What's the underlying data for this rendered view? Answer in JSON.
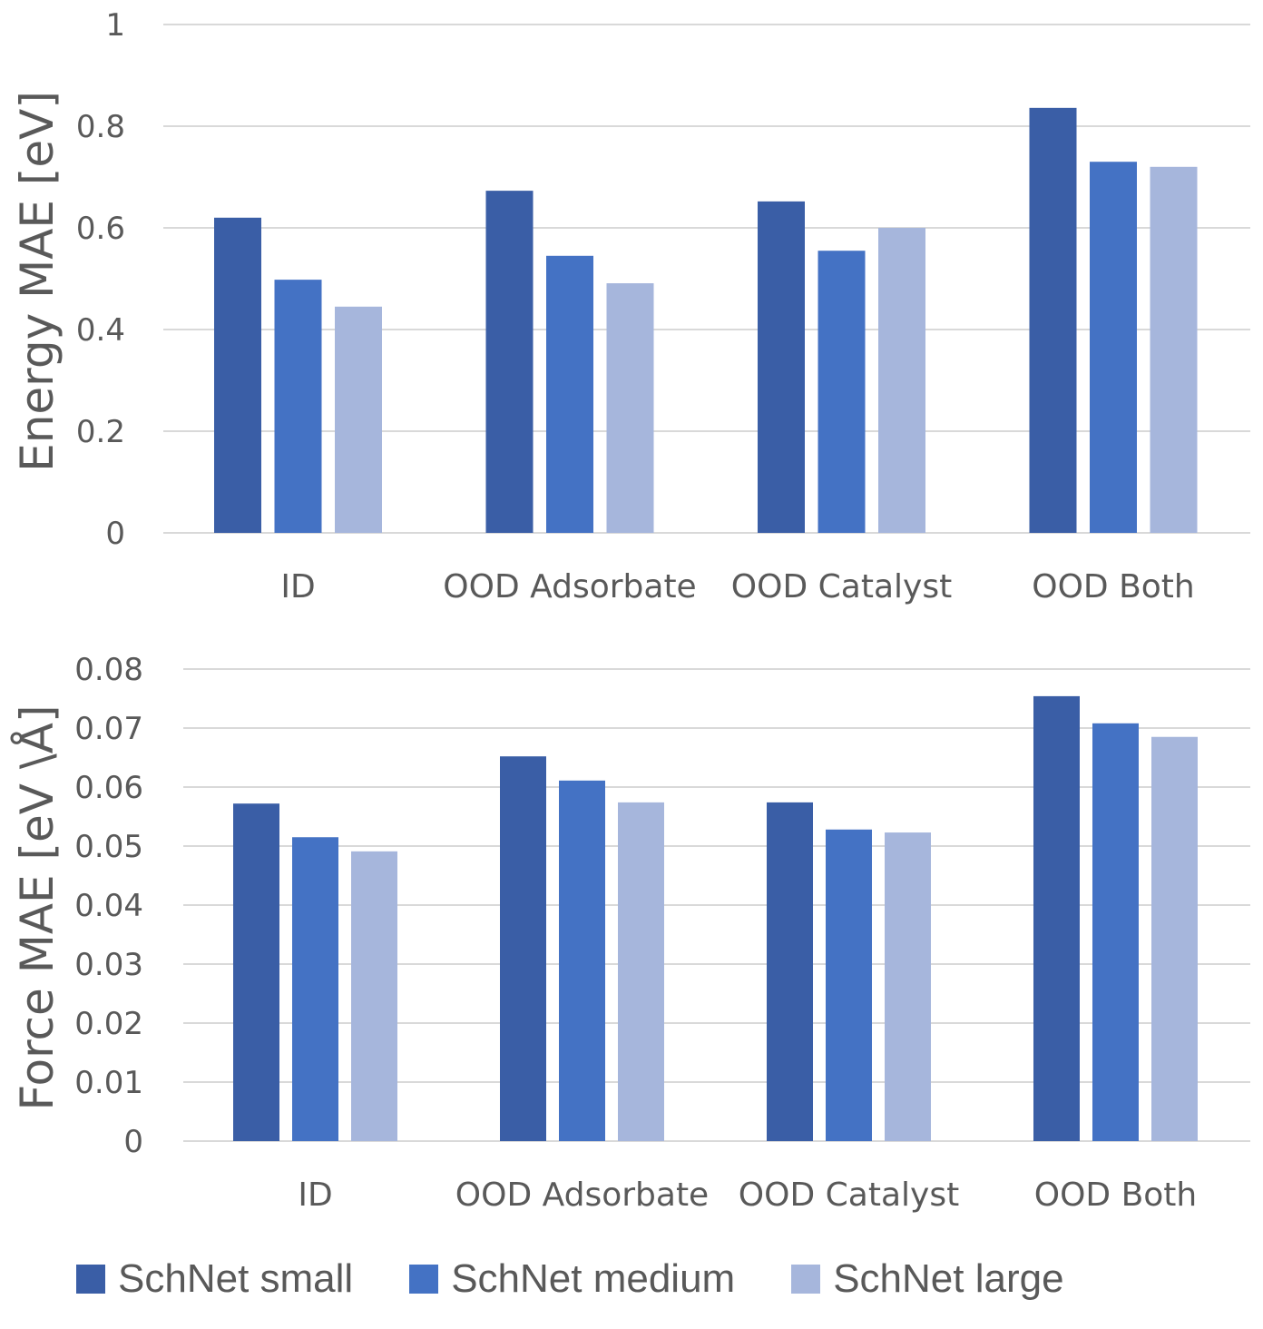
{
  "chart_data": [
    {
      "type": "bar",
      "title": "",
      "xlabel": "",
      "ylabel": "Energy MAE [eV]",
      "categories": [
        "ID",
        "OOD Adsorbate",
        "OOD Catalyst",
        "OOD Both"
      ],
      "ylim": [
        0,
        1
      ],
      "yticks": [
        0,
        0.2,
        0.4,
        0.6,
        0.8,
        1
      ],
      "ytick_labels": [
        "0",
        "0.2",
        "0.4",
        "0.6",
        "0.8",
        "1"
      ],
      "grid": true,
      "series": [
        {
          "name": "SchNet small",
          "values": [
            0.62,
            0.673,
            0.652,
            0.836
          ]
        },
        {
          "name": "SchNet medium",
          "values": [
            0.498,
            0.545,
            0.555,
            0.73
          ]
        },
        {
          "name": "SchNet large",
          "values": [
            0.445,
            0.491,
            0.6,
            0.72
          ]
        }
      ]
    },
    {
      "type": "bar",
      "title": "",
      "xlabel": "",
      "ylabel": "Force MAE [eV \\Å]",
      "categories": [
        "ID",
        "OOD Adsorbate",
        "OOD Catalyst",
        "OOD Both"
      ],
      "ylim": [
        0,
        0.08
      ],
      "yticks": [
        0,
        0.01,
        0.02,
        0.03,
        0.04,
        0.05,
        0.06,
        0.07,
        0.08
      ],
      "ytick_labels": [
        "0",
        "0.01",
        "0.02",
        "0.03",
        "0.04",
        "0.05",
        "0.06",
        "0.07",
        "0.08"
      ],
      "grid": true,
      "series": [
        {
          "name": "SchNet small",
          "values": [
            0.0572,
            0.0652,
            0.0574,
            0.0754
          ]
        },
        {
          "name": "SchNet medium",
          "values": [
            0.0515,
            0.0611,
            0.0528,
            0.0708
          ]
        },
        {
          "name": "SchNet large",
          "values": [
            0.0491,
            0.0574,
            0.0523,
            0.0685
          ]
        }
      ]
    }
  ],
  "legend": {
    "placement": "bottom",
    "items": [
      {
        "label": "SchNet small",
        "color": "#3a5ea6"
      },
      {
        "label": "SchNet medium",
        "color": "#4472c4"
      },
      {
        "label": "SchNet large",
        "color": "#a6b6dc"
      }
    ]
  },
  "colors": {
    "series": [
      "#3a5ea6",
      "#4472c4",
      "#a6b6dc"
    ],
    "grid": "#d9d9d9",
    "text": "#595959"
  }
}
